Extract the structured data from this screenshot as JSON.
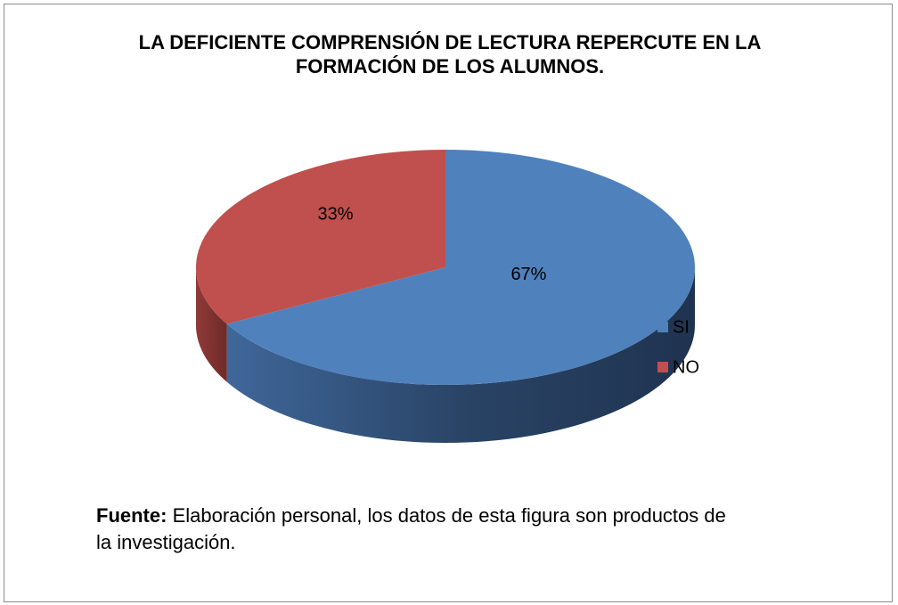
{
  "chart_data": {
    "type": "pie",
    "title": "LA DEFICIENTE COMPRENSIÓN DE LECTURA REPERCUTE EN LA FORMACIÓN DE LOS ALUMNOS.",
    "categories": [
      "SI",
      "NO"
    ],
    "values": [
      67,
      33
    ],
    "value_labels": [
      "67%",
      "33%"
    ],
    "colors": [
      "#4f81bd",
      "#c0504d"
    ],
    "legend": "right",
    "source_label": "Fuente:",
    "source_text": "Elaboración personal, los datos de esta figura son productos de la investigación."
  }
}
